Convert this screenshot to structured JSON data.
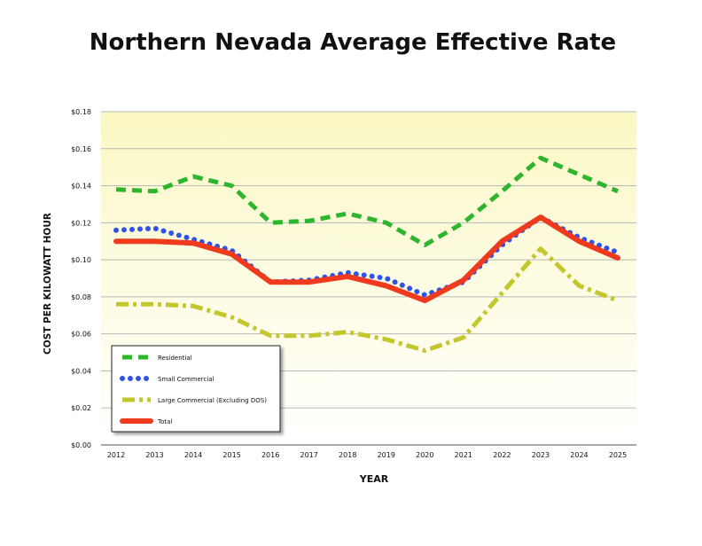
{
  "chart_data": {
    "type": "line",
    "title": "Northern Nevada Average Effective Rate",
    "xlabel": "YEAR",
    "ylabel": "COST PER KILOWATT HOUR",
    "x": [
      "2012",
      "2013",
      "2014",
      "2015",
      "2016",
      "2017",
      "2018",
      "2019",
      "2020",
      "2021",
      "2022",
      "2023",
      "2024",
      "2025"
    ],
    "ylim": [
      0,
      0.18
    ],
    "yticks": [
      {
        "value": 0.0,
        "label": "$0.00"
      },
      {
        "value": 0.02,
        "label": "$0.02"
      },
      {
        "value": 0.04,
        "label": "$0.04"
      },
      {
        "value": 0.06,
        "label": "$0.06"
      },
      {
        "value": 0.08,
        "label": "$0.08"
      },
      {
        "value": 0.1,
        "label": "$0.10"
      },
      {
        "value": 0.12,
        "label": "$0.12"
      },
      {
        "value": 0.14,
        "label": "$0.14"
      },
      {
        "value": 0.16,
        "label": "$0.16"
      },
      {
        "value": 0.18,
        "label": "$0.18"
      }
    ],
    "grid": true,
    "legend_position": "lower-left",
    "series": [
      {
        "name": "Residential",
        "color": "#2db52d",
        "style": "dashed",
        "values": [
          0.138,
          0.137,
          0.145,
          0.14,
          0.12,
          0.121,
          0.125,
          0.12,
          0.108,
          0.12,
          0.137,
          0.155,
          0.146,
          0.137
        ]
      },
      {
        "name": "Small Commercial",
        "color": "#2f52e8",
        "style": "dotted",
        "values": [
          0.116,
          0.117,
          0.111,
          0.105,
          0.088,
          0.089,
          0.093,
          0.09,
          0.081,
          0.088,
          0.108,
          0.123,
          0.112,
          0.104
        ]
      },
      {
        "name": "Large Commercial (Excluding DOS)",
        "color": "#c4c62d",
        "style": "dashdot",
        "values": [
          0.076,
          0.076,
          0.075,
          0.069,
          0.059,
          0.059,
          0.061,
          0.057,
          0.051,
          0.058,
          0.082,
          0.106,
          0.086,
          0.078
        ]
      },
      {
        "name": "Total",
        "color": "#f03a1e",
        "style": "solid",
        "values": [
          0.11,
          0.11,
          0.109,
          0.103,
          0.088,
          0.088,
          0.091,
          0.086,
          0.078,
          0.089,
          0.11,
          0.123,
          0.11,
          0.101
        ]
      }
    ]
  }
}
